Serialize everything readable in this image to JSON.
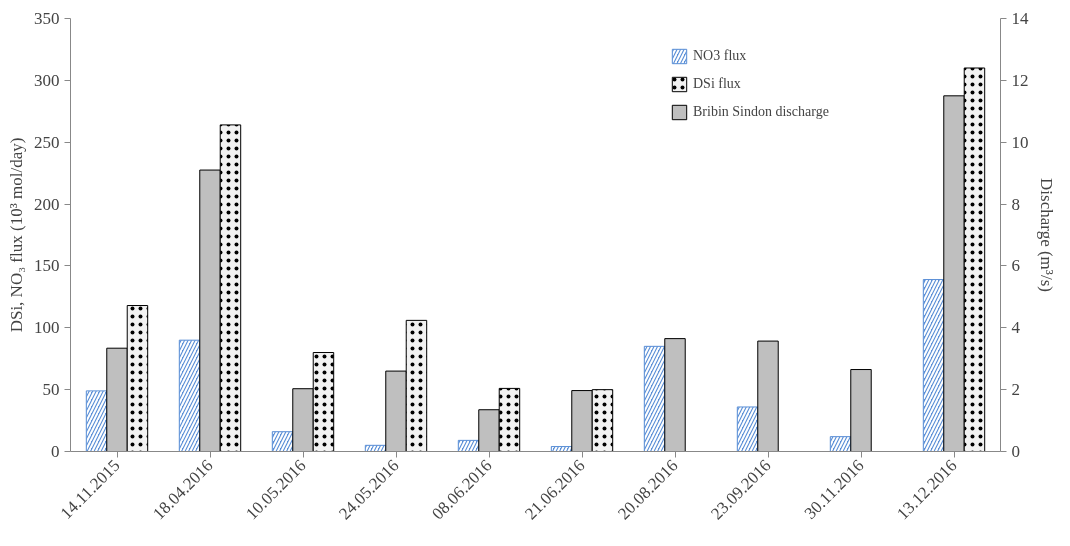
{
  "chart_data": {
    "type": "bar",
    "ylabel": "DSi, NO₃ flux (10³ mol/day)",
    "y2label": "Discharge (m³/s)",
    "categories": [
      "14.11.2015",
      "18.04.2016",
      "10.05.2016",
      "24.05.2016",
      "08.06.2016",
      "21.06.2016",
      "20.08.2016",
      "23.09.2016",
      "30.11.2016",
      "13.12.2016"
    ],
    "series": [
      {
        "name": "NO3 flux",
        "color": "#5b8fd6",
        "values": [
          49,
          90,
          16,
          5,
          9,
          4,
          85,
          36,
          12,
          139
        ]
      },
      {
        "name": "Bribin Sindon discharge",
        "color": "#bfbfbf",
        "axis": "y2",
        "values": [
          3.34,
          9.1,
          2.03,
          2.6,
          1.35,
          1.97,
          3.65,
          3.57,
          2.65,
          11.5
        ]
      },
      {
        "name": "DSi flux",
        "color": "#f2f2f2",
        "values": [
          118,
          264,
          80,
          106,
          51,
          50,
          null,
          null,
          null,
          310
        ]
      }
    ],
    "ylim": [
      0,
      350
    ],
    "yticks": [
      0,
      50,
      100,
      150,
      200,
      250,
      300,
      350
    ],
    "y2lim": [
      0,
      14
    ],
    "y2ticks": [
      0,
      2,
      4,
      6,
      8,
      10,
      12,
      14
    ],
    "grid": false,
    "legend": "top right"
  }
}
